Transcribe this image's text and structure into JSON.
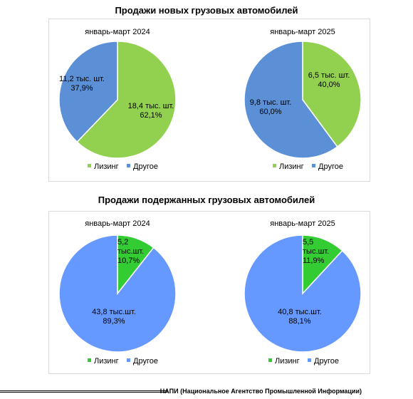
{
  "section_titles": [
    "Продажи новых грузовых автомобилей",
    "Продажи подержанных грузовых автомобилей"
  ],
  "source_note": "НАПИ (Национальное Агентство Промышленной Информации)",
  "legend_labels": [
    "Лизинг",
    "Другое"
  ],
  "chart_data": [
    {
      "type": "pie",
      "title": "январь-март 2024",
      "categories": [
        "Лизинг",
        "Другое"
      ],
      "values": [
        18.4,
        11.2
      ],
      "percents": [
        62.1,
        37.9
      ],
      "data_labels": [
        [
          "18,4 тыс. шт.",
          "62,1%"
        ],
        [
          "11,2 тыс. шт.",
          "37,9%"
        ]
      ],
      "colors": [
        "#92D050",
        "#5B8FD6"
      ],
      "legend": "bottom"
    },
    {
      "type": "pie",
      "title": "январь-март 2025",
      "categories": [
        "Лизинг",
        "Другое"
      ],
      "values": [
        6.5,
        9.8
      ],
      "percents": [
        40.0,
        60.0
      ],
      "data_labels": [
        [
          "6,5 тыс. шт.",
          "40,0%"
        ],
        [
          "9,8 тыс. шт.",
          "60,0%"
        ]
      ],
      "colors": [
        "#92D050",
        "#5B8FD6"
      ],
      "legend": "bottom"
    },
    {
      "type": "pie",
      "title": "январь-март 2024",
      "categories": [
        "Лизинг",
        "Другое"
      ],
      "values": [
        5.2,
        43.8
      ],
      "percents": [
        10.7,
        89.3
      ],
      "data_labels": [
        [
          "5,2",
          "тыс.шт.",
          "10,7%"
        ],
        [
          "43,8 тыс.шт.",
          "89,3%"
        ]
      ],
      "colors": [
        "#33CC33",
        "#6699FF"
      ],
      "legend": "bottom"
    },
    {
      "type": "pie",
      "title": "январь-март 2025",
      "categories": [
        "Лизинг",
        "Другое"
      ],
      "values": [
        5.5,
        40.8
      ],
      "percents": [
        11.9,
        88.1
      ],
      "data_labels": [
        [
          "5,5",
          "тыс.шт.",
          "11,9%"
        ],
        [
          "40,8 тыс.шт.",
          "88,1%"
        ]
      ],
      "colors": [
        "#33CC33",
        "#6699FF"
      ],
      "legend": "bottom"
    }
  ]
}
